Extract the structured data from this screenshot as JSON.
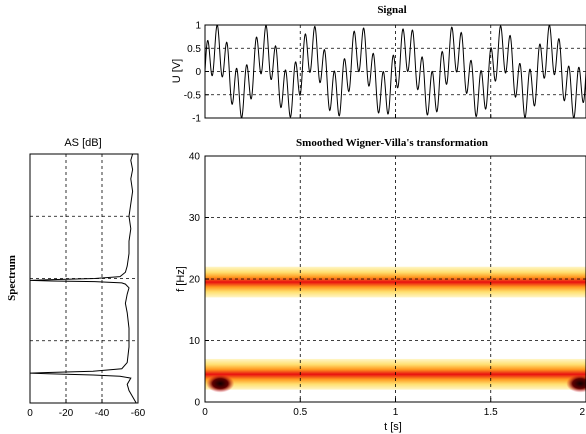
{
  "chart_data": [
    {
      "id": "signal",
      "type": "line",
      "title": "Signal",
      "xlabel": "",
      "ylabel": "U [V]",
      "xlim": [
        0,
        2
      ],
      "ylim": [
        -1,
        1
      ],
      "yticks": [
        "1",
        "0.5",
        "0",
        "-0.5",
        "-1"
      ],
      "ytick_values": [
        1,
        0.5,
        0,
        -0.5,
        -1
      ],
      "xtick_values": [
        0,
        0.5,
        1,
        1.5,
        2
      ],
      "grid": true,
      "series": [
        {
          "components": [
            {
              "freq_hz": 4,
              "amplitude": 0.5
            },
            {
              "freq_hz": 19.5,
              "amplitude": 0.5
            }
          ],
          "color": "#000000"
        }
      ]
    },
    {
      "id": "wigner",
      "type": "heatmap",
      "title": "Smoothed Wigner-Villa's transformation",
      "xlabel": "t [s]",
      "ylabel": "f [Hz]",
      "xlim": [
        0,
        2
      ],
      "ylim": [
        0,
        40
      ],
      "xticks": [
        "0",
        "0.5",
        "1",
        "1.5",
        "2"
      ],
      "xtick_values": [
        0,
        0.5,
        1,
        1.5,
        2
      ],
      "yticks": [
        "40",
        "30",
        "20",
        "10",
        "0"
      ],
      "ytick_values": [
        40,
        30,
        20,
        10,
        0
      ],
      "grid": true,
      "bands": [
        {
          "center_hz": 19.5,
          "half_width_hz": 2.5
        },
        {
          "center_hz": 4.5,
          "half_width_hz": 2.5
        }
      ],
      "colormap": [
        "#ffffff",
        "#fff0a0",
        "#ffd040",
        "#ff8000",
        "#e00000",
        "#200000"
      ]
    },
    {
      "id": "spectrum",
      "type": "line",
      "title": "AS [dB]",
      "ylabel": "Spectrum",
      "xlim": [
        0,
        -60
      ],
      "ylim": [
        0,
        40
      ],
      "xticks": [
        "0",
        "-20",
        "-40",
        "-60"
      ],
      "xtick_values": [
        0,
        -20,
        -40,
        -60
      ],
      "ytick_values": [
        10,
        20,
        30,
        40
      ],
      "grid": true,
      "series": [
        {
          "x": [
            -59,
            -57,
            -56,
            -55,
            -54,
            -56,
            -50,
            -35,
            -10,
            0,
            -10,
            -35,
            -51,
            -54,
            -55,
            -55,
            -54,
            -53,
            -54,
            -55,
            -53,
            -51,
            -36,
            -12,
            0,
            -10,
            -36,
            -50,
            -53,
            -54,
            -55,
            -55,
            -56,
            -55,
            -56,
            -57,
            -56,
            -57,
            -56,
            -57
          ],
          "y": [
            0,
            1,
            1.5,
            2,
            3,
            4,
            4.3,
            4.5,
            4.7,
            4.8,
            4.9,
            5.1,
            5.5,
            6.5,
            9,
            12,
            14.5,
            16,
            17.5,
            18.5,
            19.1,
            19.3,
            19.5,
            19.6,
            19.7,
            19.8,
            20,
            20.3,
            21,
            22,
            24,
            26,
            28,
            30,
            32,
            34,
            36,
            37.5,
            39,
            40
          ],
          "color": "#000000"
        }
      ]
    }
  ]
}
